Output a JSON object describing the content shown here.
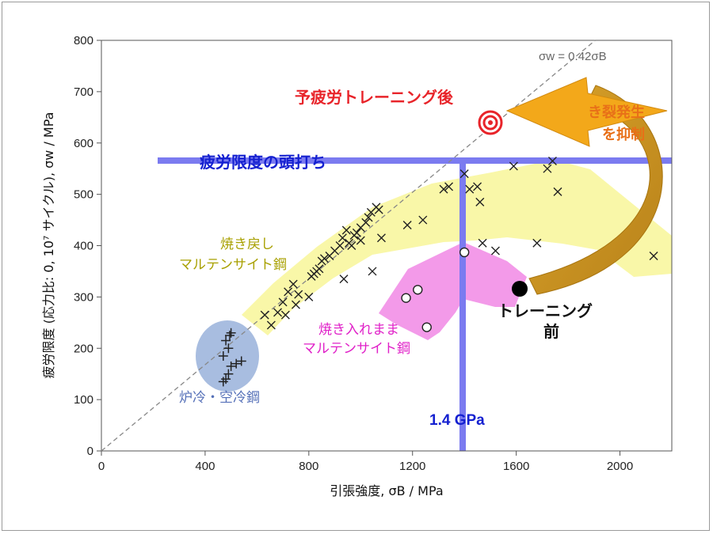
{
  "chart_data": {
    "type": "scatter",
    "xlabel": "引張強度, σB / MPa",
    "ylabel": "疲労限度 (応力比: 0, 10⁷ サイクル), σw / MPa",
    "xlim": [
      0,
      2200
    ],
    "ylim": [
      0,
      800
    ],
    "x_ticks": [
      0,
      400,
      800,
      1200,
      1600,
      2000
    ],
    "y_ticks": [
      0,
      100,
      200,
      300,
      400,
      500,
      600,
      700,
      800
    ],
    "grid": false,
    "reference_line": {
      "label": "σw = 0.42σB",
      "slope": 0.42
    },
    "series": [
      {
        "name": "焼き戻しマルテンサイト鋼",
        "marker": "x",
        "points": [
          [
            630,
            265
          ],
          [
            655,
            245
          ],
          [
            680,
            270
          ],
          [
            700,
            290
          ],
          [
            710,
            265
          ],
          [
            720,
            310
          ],
          [
            740,
            325
          ],
          [
            750,
            285
          ],
          [
            760,
            305
          ],
          [
            800,
            300
          ],
          [
            810,
            340
          ],
          [
            820,
            345
          ],
          [
            830,
            350
          ],
          [
            840,
            355
          ],
          [
            850,
            370
          ],
          [
            860,
            375
          ],
          [
            880,
            380
          ],
          [
            900,
            390
          ],
          [
            920,
            400
          ],
          [
            930,
            415
          ],
          [
            945,
            430
          ],
          [
            955,
            405
          ],
          [
            965,
            400
          ],
          [
            975,
            420
          ],
          [
            985,
            425
          ],
          [
            1000,
            435
          ],
          [
            1020,
            445
          ],
          [
            1030,
            455
          ],
          [
            1040,
            465
          ],
          [
            1060,
            475
          ],
          [
            1070,
            470
          ],
          [
            1000,
            410
          ],
          [
            1080,
            415
          ],
          [
            935,
            335
          ],
          [
            1045,
            350
          ],
          [
            1180,
            440
          ],
          [
            1240,
            450
          ],
          [
            1320,
            510
          ],
          [
            1340,
            515
          ],
          [
            1400,
            540
          ],
          [
            1420,
            510
          ],
          [
            1450,
            515
          ],
          [
            1460,
            485
          ],
          [
            1470,
            405
          ],
          [
            1520,
            390
          ],
          [
            1590,
            555
          ],
          [
            1680,
            405
          ],
          [
            1720,
            550
          ],
          [
            1740,
            565
          ],
          [
            1760,
            505
          ],
          [
            2130,
            380
          ]
        ]
      },
      {
        "name": "焼き入れままマルテンサイト鋼",
        "marker": "circle",
        "points": [
          [
            1175,
            298
          ],
          [
            1220,
            314
          ],
          [
            1255,
            241
          ],
          [
            1400,
            387
          ]
        ]
      },
      {
        "name": "炉冷・空冷鋼",
        "marker": "plus",
        "points": [
          [
            470,
            135
          ],
          [
            480,
            140
          ],
          [
            490,
            150
          ],
          [
            500,
            165
          ],
          [
            520,
            170
          ],
          [
            540,
            175
          ],
          [
            470,
            185
          ],
          [
            490,
            200
          ],
          [
            480,
            215
          ],
          [
            500,
            230
          ],
          [
            495,
            225
          ]
        ]
      },
      {
        "name": "トレーニング前",
        "marker": "filled-circle",
        "points": [
          [
            1610,
            317
          ]
        ]
      },
      {
        "name": "予疲労トレーニング後",
        "marker": "target",
        "points": [
          [
            1500,
            640
          ]
        ]
      }
    ],
    "annotations": {
      "after_training": "予疲労トレーニング後",
      "fatigue_plateau": "疲労限度の頭打ち",
      "crack_line1": "き裂発生",
      "crack_line2": "を抑制",
      "tempered_line1": "焼き戻し",
      "tempered_line2": "マルテンサイト鋼",
      "quenched_line1": "焼き入れまま",
      "quenched_line2": "マルテンサイト鋼",
      "cooled": "炉冷・空冷鋼",
      "before_line1": "トレーニング",
      "before_line2": "前",
      "gpa": "1.4 GPa"
    },
    "colors": {
      "tempered_region": "#f9f7a8",
      "quenched_region": "#f39ae9",
      "cooled_region": "#a8bde0",
      "plateau_line": "#7b7bf0",
      "after_label": "#e8242a",
      "blue_label": "#1420d0",
      "olive_label": "#a8a000",
      "magenta_label": "#e020c8",
      "cooled_label": "#5570b8",
      "orange_text": "#e87018",
      "arrow_orange": "#f3a81a",
      "arrow_brown": "#c8901a"
    }
  }
}
